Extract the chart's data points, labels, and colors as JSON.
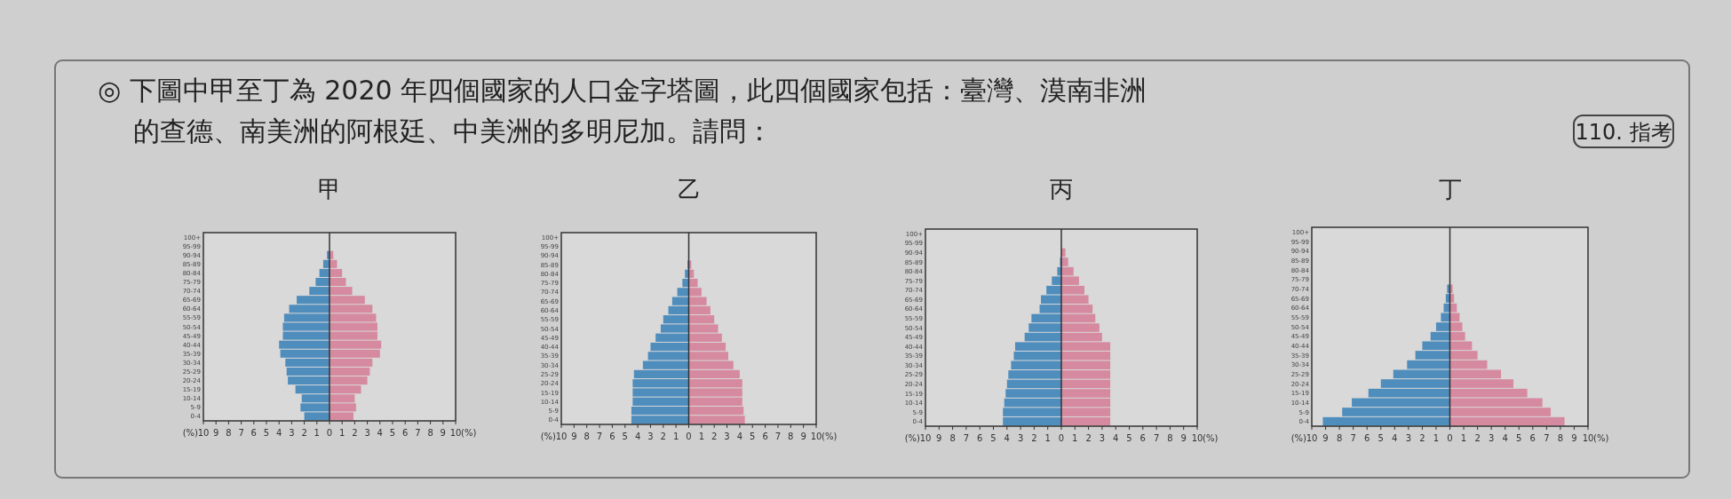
{
  "chart_data": [
    {
      "type": "bar",
      "orientation": "horizontal",
      "stacked": true,
      "title": "甲",
      "xlabel": "(%)",
      "annotations": [
        "◎ 下圖中甲至丁為 2020 年四個國家的人口金字塔圖，此四個國家包括：臺灣、漠南非洲",
        "的查德、南美洲的阿根廷、中美洲的多明尼加。請問：",
        "110. 指考"
      ],
      "categories": [
        "100+",
        "95-99",
        "90-94",
        "85-89",
        "80-84",
        "75-79",
        "70-74",
        "65-69",
        "60-64",
        "55-59",
        "50-54",
        "45-49",
        "40-44",
        "35-39",
        "30-34",
        "25-29",
        "20-24",
        "15-19",
        "10-14",
        "5-9",
        "0-4"
      ],
      "xlim": [
        -10,
        10
      ],
      "xticks": [
        {
          "value": -10,
          "label": "10"
        },
        {
          "value": -9,
          "label": "9"
        },
        {
          "value": -8,
          "label": "8"
        },
        {
          "value": -7,
          "label": "7"
        },
        {
          "value": -6,
          "label": "6"
        },
        {
          "value": -5,
          "label": "5"
        },
        {
          "value": -4,
          "label": "4"
        },
        {
          "value": -3,
          "label": "3"
        },
        {
          "value": -2,
          "label": "2"
        },
        {
          "value": -1,
          "label": "1"
        },
        0,
        1,
        2,
        3,
        4,
        5,
        6,
        7,
        8,
        9,
        10
      ],
      "series": [
        {
          "color": "#4f8dbd",
          "values": [
            0,
            0,
            -0.2,
            -0.5,
            -0.8,
            -1.1,
            -1.6,
            -2.6,
            -3.2,
            -3.6,
            -3.7,
            -3.7,
            -4.0,
            -3.9,
            -3.5,
            -3.4,
            -3.3,
            -2.7,
            -2.2,
            -2.3,
            -2.0
          ]
        },
        {
          "color": "#d68aa0",
          "values": [
            0,
            0,
            0.3,
            0.6,
            1.0,
            1.3,
            1.8,
            2.8,
            3.4,
            3.7,
            3.8,
            3.8,
            4.1,
            4.0,
            3.4,
            3.2,
            3.0,
            2.5,
            2.0,
            2.1,
            1.9
          ]
        }
      ]
    },
    {
      "type": "bar",
      "orientation": "horizontal",
      "stacked": true,
      "title": "乙",
      "xlabel": "(%)",
      "categories": [
        "100+",
        "95-99",
        "90-94",
        "85-89",
        "80-84",
        "75-79",
        "70-74",
        "65-69",
        "60-64",
        "55-59",
        "50-54",
        "45-49",
        "40-44",
        "35-39",
        "30-34",
        "25-29",
        "20-24",
        "15-19",
        "10-14",
        "5-9",
        "0-4"
      ],
      "xlim": [
        -10,
        10
      ],
      "xticks": [
        {
          "value": -10,
          "label": "10"
        },
        {
          "value": -9,
          "label": "9"
        },
        {
          "value": -8,
          "label": "8"
        },
        {
          "value": -7,
          "label": "7"
        },
        {
          "value": -6,
          "label": "6"
        },
        {
          "value": -5,
          "label": "5"
        },
        {
          "value": -4,
          "label": "4"
        },
        {
          "value": -3,
          "label": "3"
        },
        {
          "value": -2,
          "label": "2"
        },
        {
          "value": -1,
          "label": "1"
        },
        0,
        1,
        2,
        3,
        4,
        5,
        6,
        7,
        8,
        9,
        10
      ],
      "series": [
        {
          "color": "#4f8dbd",
          "values": [
            0,
            0,
            0,
            -0.1,
            -0.3,
            -0.5,
            -0.9,
            -1.3,
            -1.6,
            -2.0,
            -2.2,
            -2.6,
            -3.0,
            -3.2,
            -3.6,
            -4.3,
            -4.4,
            -4.4,
            -4.4,
            -4.5,
            -4.5
          ]
        },
        {
          "color": "#d68aa0",
          "values": [
            0,
            0,
            0,
            0.2,
            0.4,
            0.7,
            1.0,
            1.4,
            1.7,
            2.0,
            2.3,
            2.6,
            2.9,
            3.1,
            3.5,
            4.0,
            4.2,
            4.2,
            4.2,
            4.3,
            4.4
          ]
        }
      ]
    },
    {
      "type": "bar",
      "orientation": "horizontal",
      "stacked": true,
      "title": "丙",
      "xlabel": "(%)",
      "categories": [
        "100+",
        "95-99",
        "90-94",
        "85-89",
        "80-84",
        "75-79",
        "70-74",
        "65-69",
        "60-64",
        "55-59",
        "50-54",
        "45-49",
        "40-44",
        "35-39",
        "30-34",
        "25-29",
        "20-24",
        "15-19",
        "10-14",
        "5-9",
        "0-4"
      ],
      "xlim": [
        -10,
        10
      ],
      "xticks": [
        {
          "value": -10,
          "label": "10"
        },
        {
          "value": -9,
          "label": "9"
        },
        {
          "value": -8,
          "label": "8"
        },
        {
          "value": -7,
          "label": "7"
        },
        {
          "value": -6,
          "label": "6"
        },
        {
          "value": -5,
          "label": "5"
        },
        {
          "value": -4,
          "label": "4"
        },
        {
          "value": -3,
          "label": "3"
        },
        {
          "value": -2,
          "label": "2"
        },
        {
          "value": -1,
          "label": "1"
        },
        0,
        1,
        2,
        3,
        4,
        5,
        6,
        7,
        8,
        9,
        10
      ],
      "series": [
        {
          "color": "#4f8dbd",
          "values": [
            0,
            0,
            0,
            -0.1,
            -0.3,
            -0.7,
            -1.1,
            -1.5,
            -1.6,
            -2.2,
            -2.4,
            -2.7,
            -3.4,
            -3.5,
            -3.7,
            -3.9,
            -4.0,
            -4.1,
            -4.2,
            -4.3,
            -4.3
          ]
        },
        {
          "color": "#d68aa0",
          "values": [
            0,
            0,
            0.3,
            0.5,
            0.9,
            1.3,
            1.7,
            2.0,
            2.3,
            2.5,
            2.8,
            3.0,
            3.6,
            3.6,
            3.6,
            3.6,
            3.6,
            3.6,
            3.6,
            3.6,
            3.6
          ]
        }
      ]
    },
    {
      "type": "bar",
      "orientation": "horizontal",
      "stacked": true,
      "title": "丁",
      "xlabel": "(%)",
      "categories": [
        "100+",
        "95-99",
        "90-94",
        "85-89",
        "80-84",
        "75-79",
        "70-74",
        "65-69",
        "60-64",
        "55-59",
        "50-54",
        "45-49",
        "40-44",
        "35-39",
        "30-34",
        "25-29",
        "20-24",
        "15-19",
        "10-14",
        "5-9",
        "0-4"
      ],
      "xlim": [
        -10,
        10
      ],
      "xticks": [
        {
          "value": -10,
          "label": "10"
        },
        {
          "value": -9,
          "label": "9"
        },
        {
          "value": -8,
          "label": "8"
        },
        {
          "value": -7,
          "label": "7"
        },
        {
          "value": -6,
          "label": "6"
        },
        {
          "value": -5,
          "label": "5"
        },
        {
          "value": -4,
          "label": "4"
        },
        {
          "value": -3,
          "label": "3"
        },
        {
          "value": -2,
          "label": "2"
        },
        {
          "value": -1,
          "label": "1"
        },
        0,
        1,
        2,
        3,
        4,
        5,
        6,
        7,
        8,
        9,
        10
      ],
      "series": [
        {
          "color": "#4f8dbd",
          "values": [
            0,
            0,
            0,
            0,
            0,
            0,
            -0.2,
            -0.3,
            -0.45,
            -0.65,
            -1.0,
            -1.4,
            -2.0,
            -2.5,
            -3.1,
            -4.1,
            -5.0,
            -5.9,
            -7.1,
            -7.8,
            -9.2
          ]
        },
        {
          "color": "#d68aa0",
          "values": [
            0,
            0,
            0,
            0,
            0,
            0,
            0.2,
            0.3,
            0.5,
            0.7,
            0.9,
            1.1,
            1.6,
            2.0,
            2.7,
            3.7,
            4.6,
            5.6,
            6.7,
            7.3,
            8.3
          ]
        }
      ]
    }
  ]
}
